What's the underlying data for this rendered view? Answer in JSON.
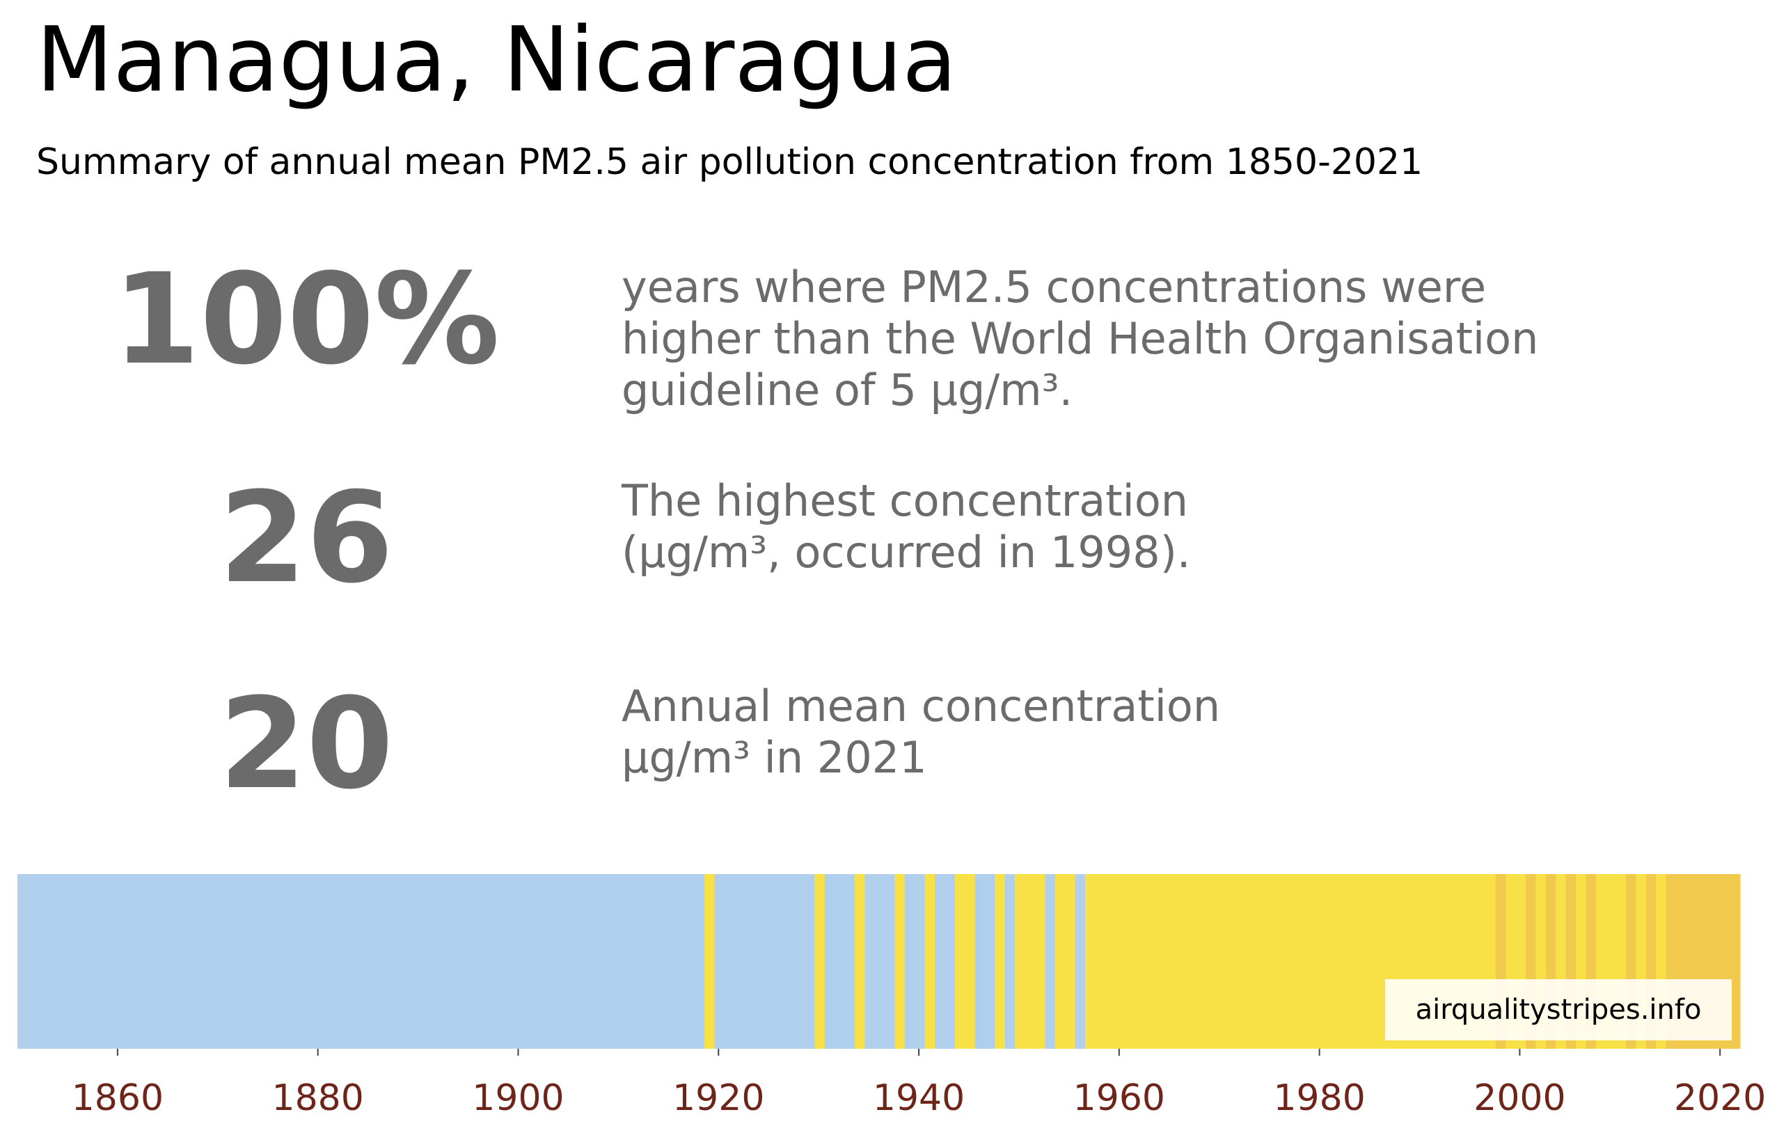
{
  "title": "Managua, Nicaragua",
  "subtitle": "Summary of annual mean PM2.5 air pollution concentration from 1850-2021",
  "stats": [
    {
      "value": "100%",
      "lines": [
        "years where PM2.5 concentrations were",
        "higher than the World Health Organisation",
        "guideline of 5 µg/m³."
      ]
    },
    {
      "value": "26",
      "lines": [
        "The highest concentration",
        "(µg/m³, occurred in 1998)."
      ]
    },
    {
      "value": "20",
      "lines": [
        "Annual mean concentration",
        "µg/m³ in 2021"
      ]
    }
  ],
  "watermark": "airqualitystripes.info",
  "colors": {
    "band_low": "#b0cfed",
    "band_mid": "#f8e047",
    "band_high": "#f0c94d",
    "stat_text": "#6b6b6b",
    "tick_text": "#6e2418"
  },
  "chart_data": {
    "type": "heatmap",
    "description_of_encoding": "",
    "x_range": [
      1850,
      2022
    ],
    "xticks": [
      1860,
      1880,
      1900,
      1920,
      1940,
      1960,
      1980,
      2000,
      2020
    ],
    "segments": [
      {
        "start": 1850,
        "end": 1918.6,
        "level": "low"
      },
      {
        "start": 1918.6,
        "end": 1919.6,
        "level": "mid"
      },
      {
        "start": 1919.6,
        "end": 1929.6,
        "level": "low"
      },
      {
        "start": 1929.6,
        "end": 1930.6,
        "level": "mid"
      },
      {
        "start": 1930.6,
        "end": 1933.6,
        "level": "low"
      },
      {
        "start": 1933.6,
        "end": 1934.6,
        "level": "mid"
      },
      {
        "start": 1934.6,
        "end": 1937.6,
        "level": "low"
      },
      {
        "start": 1937.6,
        "end": 1938.6,
        "level": "mid"
      },
      {
        "start": 1938.6,
        "end": 1940.6,
        "level": "low"
      },
      {
        "start": 1940.6,
        "end": 1941.6,
        "level": "mid"
      },
      {
        "start": 1941.6,
        "end": 1943.6,
        "level": "low"
      },
      {
        "start": 1943.6,
        "end": 1945.6,
        "level": "mid"
      },
      {
        "start": 1945.6,
        "end": 1947.6,
        "level": "low"
      },
      {
        "start": 1947.6,
        "end": 1948.6,
        "level": "mid"
      },
      {
        "start": 1948.6,
        "end": 1949.6,
        "level": "low"
      },
      {
        "start": 1949.6,
        "end": 1952.6,
        "level": "mid"
      },
      {
        "start": 1952.6,
        "end": 1953.6,
        "level": "low"
      },
      {
        "start": 1953.6,
        "end": 1955.6,
        "level": "mid"
      },
      {
        "start": 1955.6,
        "end": 1956.6,
        "level": "low"
      },
      {
        "start": 1956.6,
        "end": 1997.6,
        "level": "mid"
      },
      {
        "start": 1997.6,
        "end": 1998.6,
        "level": "high"
      },
      {
        "start": 1998.6,
        "end": 2000.6,
        "level": "mid"
      },
      {
        "start": 2000.6,
        "end": 2001.6,
        "level": "high"
      },
      {
        "start": 2001.6,
        "end": 2002.6,
        "level": "mid"
      },
      {
        "start": 2002.6,
        "end": 2003.6,
        "level": "high"
      },
      {
        "start": 2003.6,
        "end": 2004.6,
        "level": "mid"
      },
      {
        "start": 2004.6,
        "end": 2005.6,
        "level": "high"
      },
      {
        "start": 2005.6,
        "end": 2006.6,
        "level": "mid"
      },
      {
        "start": 2006.6,
        "end": 2007.6,
        "level": "high"
      },
      {
        "start": 2007.6,
        "end": 2010.6,
        "level": "mid"
      },
      {
        "start": 2010.6,
        "end": 2011.6,
        "level": "high"
      },
      {
        "start": 2011.6,
        "end": 2012.6,
        "level": "mid"
      },
      {
        "start": 2012.6,
        "end": 2013.6,
        "level": "high"
      },
      {
        "start": 2013.6,
        "end": 2014.6,
        "level": "mid"
      },
      {
        "start": 2014.6,
        "end": 2022,
        "level": "high"
      }
    ]
  }
}
